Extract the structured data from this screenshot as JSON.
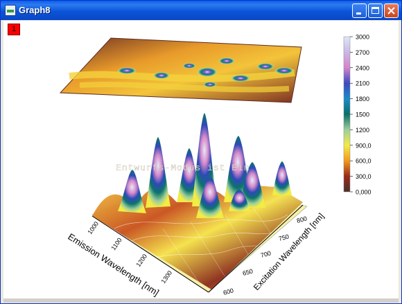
{
  "window": {
    "title": "Graph8",
    "layer_label": "1"
  },
  "watermark": "Entwurfs-Modus ist Ein",
  "axes": {
    "emission": {
      "label": "Emission Wavelength [nm]",
      "ticks": [
        "1000",
        "1100",
        "1200",
        "1300"
      ]
    },
    "excitation": {
      "label": "Excitation Wavelength [nm]",
      "ticks": [
        "600",
        "650",
        "700",
        "750",
        "800"
      ]
    }
  },
  "colorbar": {
    "ticks": [
      "3000",
      "2700",
      "2400",
      "2100",
      "1800",
      "1500",
      "1200",
      "900,0",
      "600,0",
      "300,0",
      "0,000"
    ],
    "colors": [
      "#dfe6f7",
      "#c9b8e6",
      "#d484c9",
      "#3c4bc0",
      "#1a8bc8",
      "#0a6f6a",
      "#9ccf9a",
      "#f2ec45",
      "#f29a1c",
      "#9a2a1a",
      "#4a3228"
    ]
  }
}
